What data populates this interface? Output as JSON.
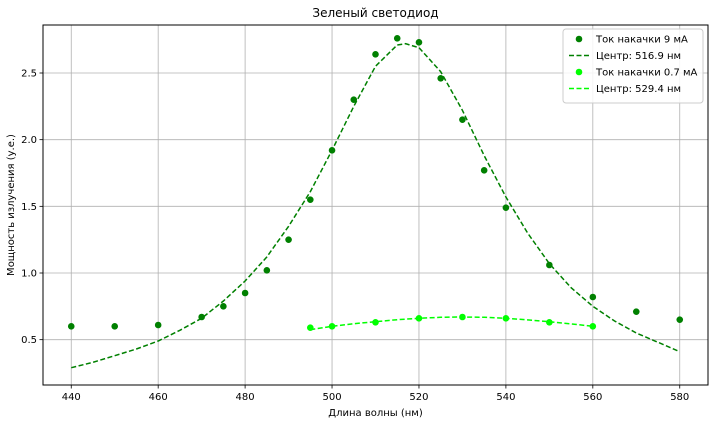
{
  "chart_data": {
    "type": "scatter",
    "title": "Зеленый светодиод",
    "xlabel": "Длина волны (нм)",
    "ylabel": "Мощность излучения (у.е.)",
    "xlim": [
      433.5,
      586.5
    ],
    "ylim": [
      0.16,
      2.86
    ],
    "xticks": [
      440,
      460,
      480,
      500,
      520,
      540,
      560,
      580
    ],
    "yticks": [
      0.5,
      1.0,
      1.5,
      2.0,
      2.5
    ],
    "xtick_labels": [
      "440",
      "460",
      "480",
      "500",
      "520",
      "540",
      "560",
      "580"
    ],
    "ytick_labels": [
      "0.5",
      "1.0",
      "1.5",
      "2.0",
      "2.5"
    ],
    "grid": true,
    "legend_position": "top-right",
    "series": [
      {
        "name": "Ток накачки 9 мА",
        "kind": "scatter",
        "color": "#008000",
        "x": [
          440,
          450,
          460,
          470,
          475,
          480,
          485,
          490,
          495,
          500,
          505,
          510,
          515,
          520,
          525,
          530,
          535,
          540,
          550,
          560,
          570,
          580
        ],
        "y": [
          0.6,
          0.6,
          0.61,
          0.67,
          0.75,
          0.85,
          1.02,
          1.25,
          1.55,
          1.92,
          2.3,
          2.64,
          2.76,
          2.73,
          2.46,
          2.15,
          1.77,
          1.49,
          1.06,
          0.82,
          0.71,
          0.65
        ]
      },
      {
        "name": "Центр: 516.9 нм",
        "kind": "line",
        "style": "dashed",
        "color": "#008000",
        "x": [
          440,
          445,
          450,
          455,
          460,
          465,
          470,
          475,
          480,
          485,
          490,
          495,
          500,
          505,
          510,
          515,
          516.9,
          520,
          525,
          530,
          535,
          540,
          545,
          550,
          555,
          560,
          565,
          570,
          575,
          580
        ],
        "y": [
          0.29,
          0.33,
          0.38,
          0.43,
          0.49,
          0.57,
          0.66,
          0.79,
          0.94,
          1.12,
          1.35,
          1.61,
          1.92,
          2.25,
          2.55,
          2.71,
          2.72,
          2.69,
          2.51,
          2.22,
          1.88,
          1.57,
          1.3,
          1.07,
          0.89,
          0.75,
          0.64,
          0.55,
          0.48,
          0.41
        ]
      },
      {
        "name": "Ток накачки 0.7 мА",
        "kind": "scatter",
        "color": "#00ff00",
        "x": [
          495,
          500,
          510,
          520,
          530,
          540,
          550,
          560
        ],
        "y": [
          0.59,
          0.6,
          0.63,
          0.66,
          0.67,
          0.66,
          0.63,
          0.6
        ]
      },
      {
        "name": "Центр: 529.4 нм",
        "kind": "line",
        "style": "dashed",
        "color": "#00ff00",
        "x": [
          495,
          500,
          505,
          510,
          515,
          520,
          525,
          529.4,
          535,
          540,
          545,
          550,
          555,
          560
        ],
        "y": [
          0.575,
          0.6,
          0.62,
          0.635,
          0.65,
          0.66,
          0.668,
          0.67,
          0.668,
          0.66,
          0.648,
          0.635,
          0.618,
          0.6
        ]
      }
    ]
  }
}
